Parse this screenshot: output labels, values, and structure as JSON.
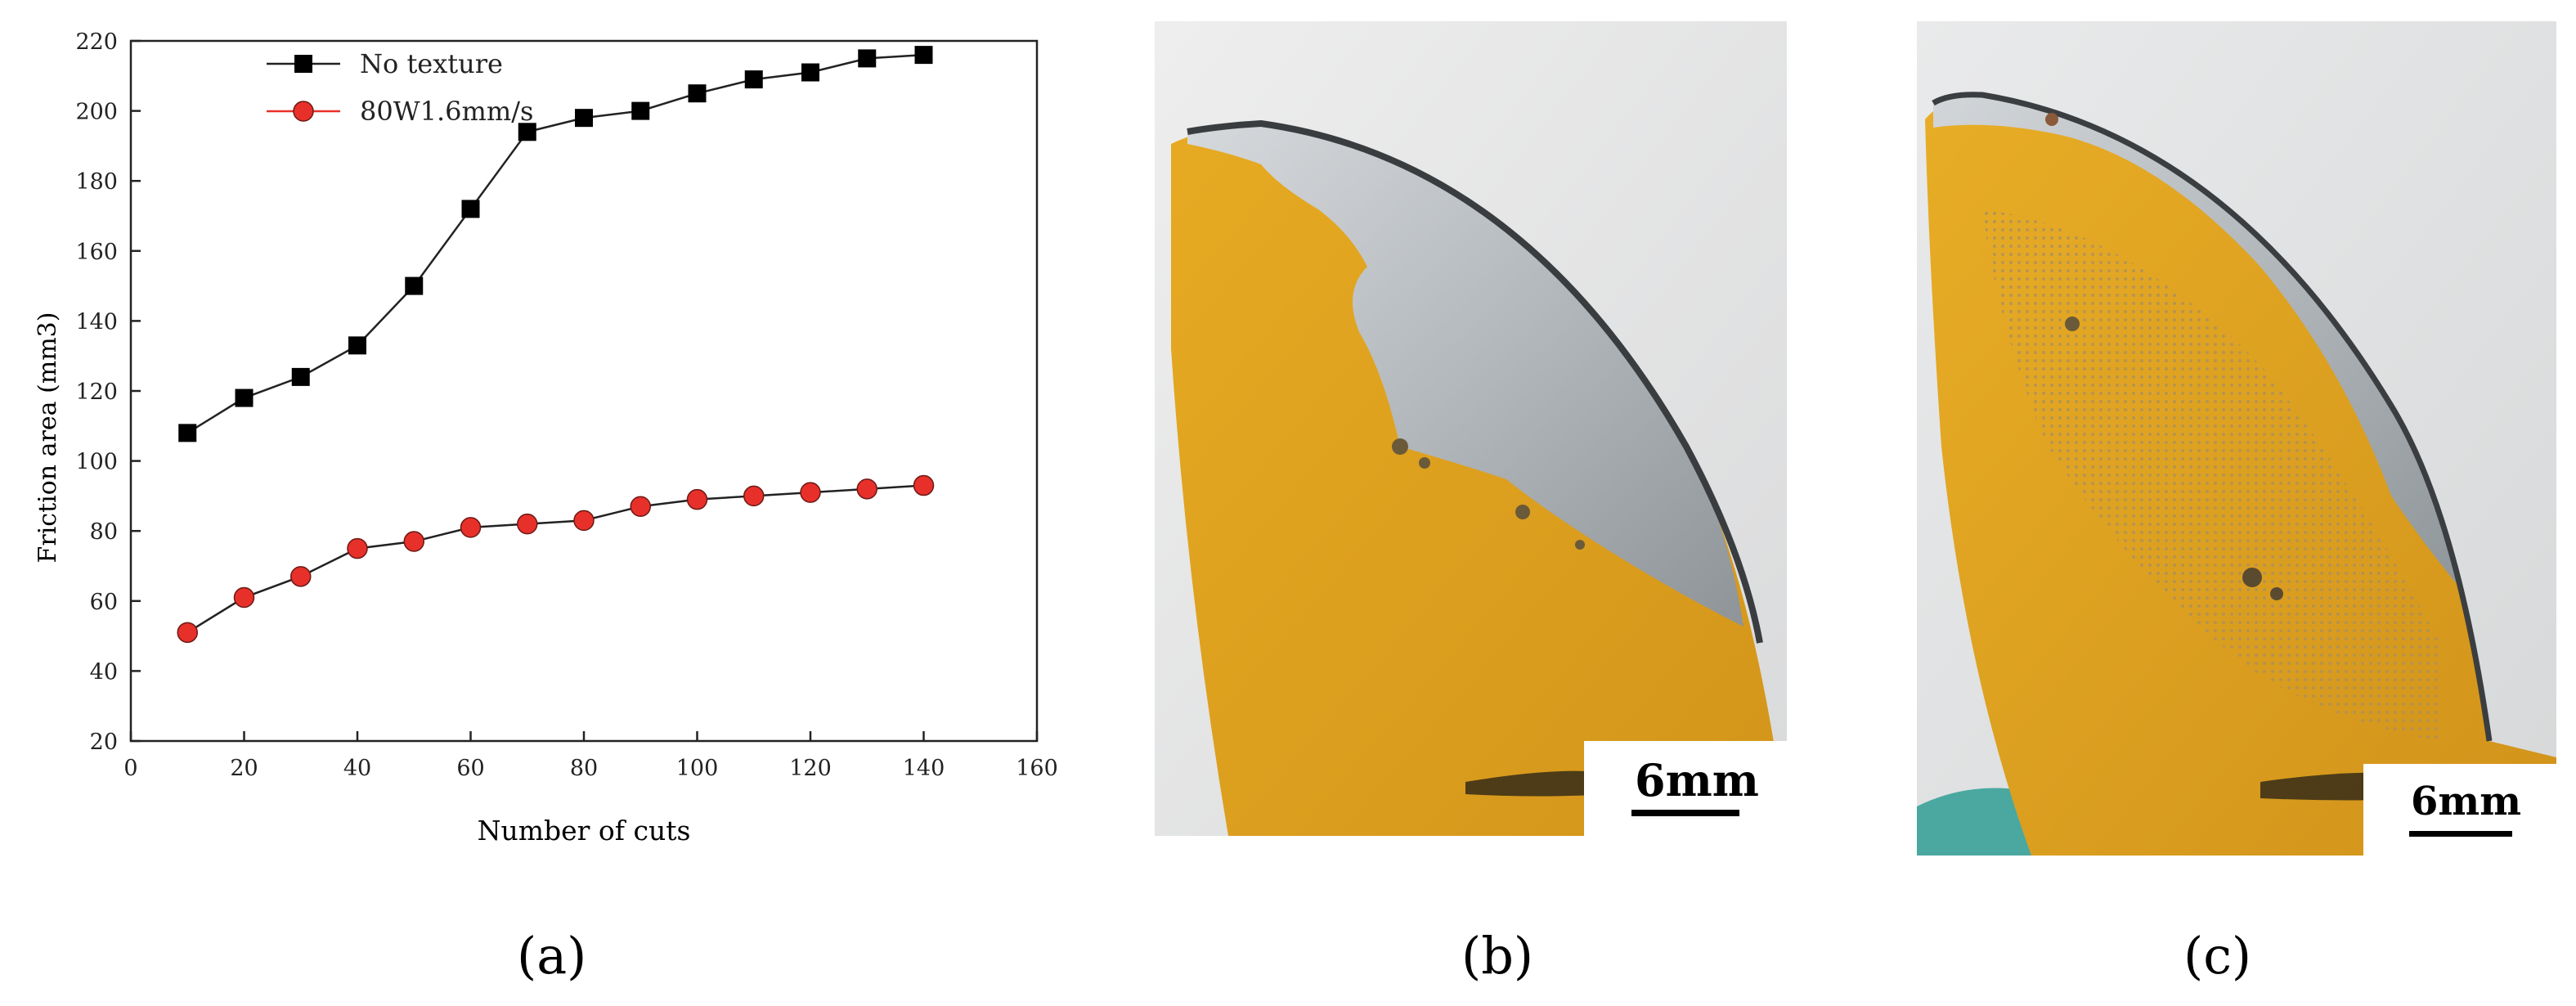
{
  "chart_data": {
    "type": "line",
    "xlabel": "Number of cuts",
    "ylabel": "Friction area (mm3)",
    "xlim": [
      0,
      160
    ],
    "ylim": [
      20,
      220
    ],
    "x_ticks": [
      0,
      20,
      40,
      60,
      80,
      100,
      120,
      140,
      160
    ],
    "y_ticks": [
      20,
      40,
      60,
      80,
      100,
      120,
      140,
      160,
      180,
      200,
      220
    ],
    "grid": false,
    "legend_position": "top-left",
    "series": [
      {
        "name": "No texture",
        "color": "#000000",
        "marker": "square",
        "x": [
          10,
          20,
          30,
          40,
          50,
          60,
          70,
          80,
          90,
          100,
          110,
          120,
          130,
          140
        ],
        "y": [
          108,
          118,
          124,
          133,
          150,
          172,
          194,
          198,
          200,
          205,
          209,
          211,
          215,
          216
        ]
      },
      {
        "name": "80W1.6mm/s",
        "color": "#e8302a",
        "marker": "circle",
        "x": [
          10,
          20,
          30,
          40,
          50,
          60,
          70,
          80,
          90,
          100,
          110,
          120,
          130,
          140
        ],
        "y": [
          51,
          61,
          67,
          75,
          77,
          81,
          82,
          83,
          87,
          89,
          90,
          91,
          92,
          93
        ]
      }
    ]
  },
  "panels": {
    "a": {
      "caption": "(a)"
    },
    "b": {
      "caption": "(b)",
      "scale_label": "6mm"
    },
    "c": {
      "caption": "(c)",
      "scale_label": "6mm"
    }
  },
  "colors": {
    "blade_yellow": "#e3a61c",
    "blade_steel": "#b9bec2",
    "background_grey": "#e6e7e8"
  }
}
